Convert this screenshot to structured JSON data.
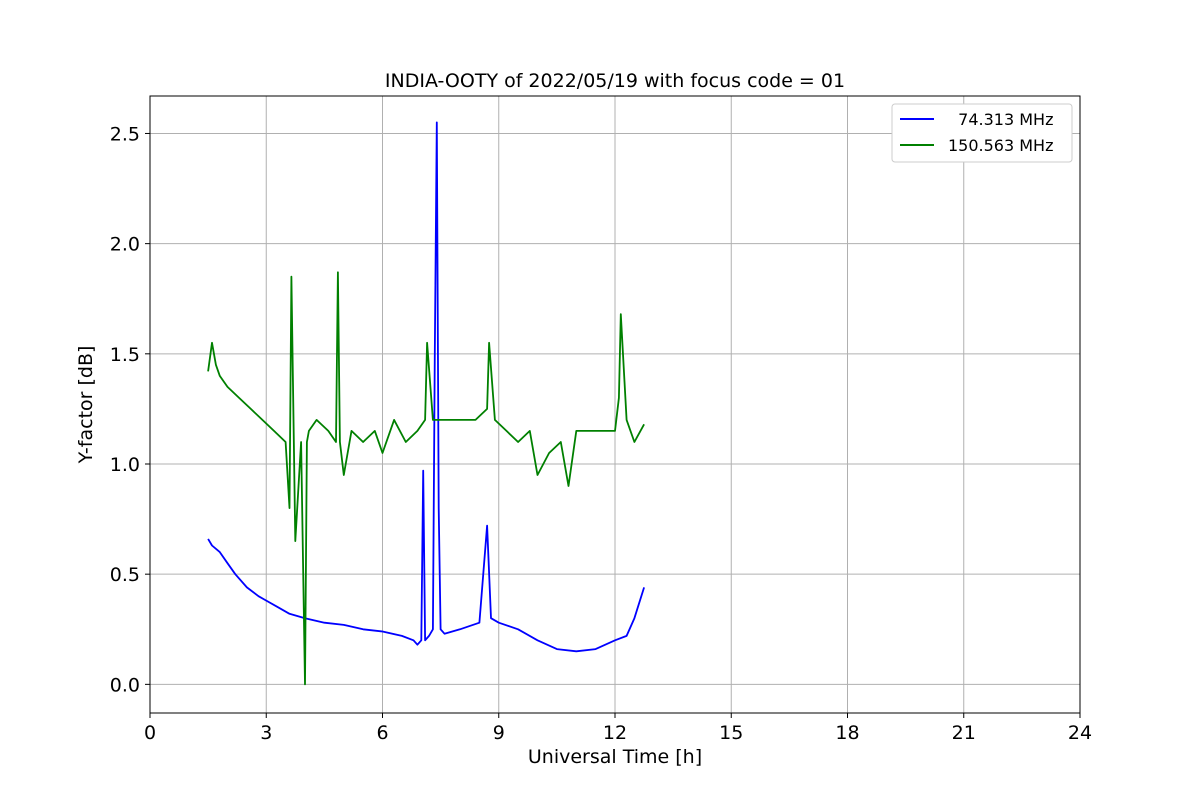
{
  "chart_data": {
    "type": "line",
    "title": "INDIA-OOTY of 2022/05/19 with focus code = 01",
    "xlabel": "Universal Time [h]",
    "ylabel": "Y-factor [dB]",
    "xlim": [
      0,
      24
    ],
    "ylim": [
      -0.13,
      2.67
    ],
    "xticks": [
      0,
      3,
      6,
      9,
      12,
      15,
      18,
      21,
      24
    ],
    "xtick_labels": [
      "0",
      "3",
      "6",
      "9",
      "12",
      "15",
      "18",
      "21",
      "24"
    ],
    "yticks": [
      0.0,
      0.5,
      1.0,
      1.5,
      2.0,
      2.5
    ],
    "ytick_labels": [
      "0.0",
      "0.5",
      "1.0",
      "1.5",
      "2.0",
      "2.5"
    ],
    "grid": true,
    "legend_position": "top-right",
    "series": [
      {
        "name": "  74.313 MHz",
        "color": "#0000ff",
        "x": [
          1.5,
          1.6,
          1.8,
          2.0,
          2.2,
          2.5,
          2.8,
          3.0,
          3.3,
          3.6,
          4.0,
          4.5,
          5.0,
          5.5,
          6.0,
          6.5,
          6.8,
          6.9,
          7.0,
          7.05,
          7.1,
          7.2,
          7.3,
          7.35,
          7.4,
          7.45,
          7.5,
          7.6,
          8.0,
          8.5,
          8.7,
          8.8,
          9.0,
          9.5,
          10.0,
          10.5,
          11.0,
          11.5,
          12.0,
          12.3,
          12.5,
          12.75
        ],
        "values": [
          0.66,
          0.63,
          0.6,
          0.55,
          0.5,
          0.44,
          0.4,
          0.38,
          0.35,
          0.32,
          0.3,
          0.28,
          0.27,
          0.25,
          0.24,
          0.22,
          0.2,
          0.18,
          0.2,
          0.97,
          0.2,
          0.22,
          0.25,
          1.5,
          2.55,
          0.8,
          0.25,
          0.23,
          0.25,
          0.28,
          0.72,
          0.3,
          0.28,
          0.25,
          0.2,
          0.16,
          0.15,
          0.16,
          0.2,
          0.22,
          0.3,
          0.44
        ]
      },
      {
        "name": "150.563 MHz",
        "color": "#008000",
        "x": [
          1.5,
          1.6,
          1.7,
          1.8,
          2.0,
          2.3,
          2.6,
          2.9,
          3.2,
          3.5,
          3.6,
          3.65,
          3.75,
          3.9,
          4.0,
          4.05,
          4.1,
          4.3,
          4.6,
          4.8,
          4.85,
          4.9,
          5.0,
          5.2,
          5.5,
          5.8,
          6.0,
          6.3,
          6.6,
          6.9,
          7.1,
          7.15,
          7.3,
          7.6,
          8.0,
          8.4,
          8.7,
          8.75,
          8.9,
          9.2,
          9.5,
          9.8,
          10.0,
          10.3,
          10.6,
          10.8,
          11.0,
          11.5,
          12.0,
          12.1,
          12.15,
          12.3,
          12.5,
          12.75
        ],
        "values": [
          1.42,
          1.55,
          1.45,
          1.4,
          1.35,
          1.3,
          1.25,
          1.2,
          1.15,
          1.1,
          0.8,
          1.85,
          0.65,
          1.1,
          0.0,
          1.1,
          1.15,
          1.2,
          1.15,
          1.1,
          1.87,
          1.1,
          0.95,
          1.15,
          1.1,
          1.15,
          1.05,
          1.2,
          1.1,
          1.15,
          1.2,
          1.55,
          1.2,
          1.2,
          1.2,
          1.2,
          1.25,
          1.55,
          1.2,
          1.15,
          1.1,
          1.15,
          0.95,
          1.05,
          1.1,
          0.9,
          1.15,
          1.15,
          1.15,
          1.3,
          1.68,
          1.2,
          1.1,
          1.18
        ]
      }
    ]
  }
}
